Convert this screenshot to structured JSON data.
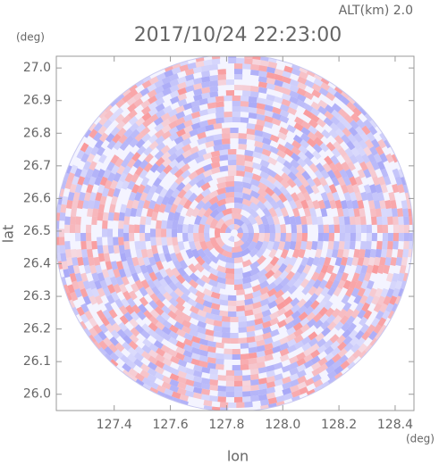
{
  "chart_data": {
    "type": "radar-ppi",
    "title": "2017/10/24 22:23:00",
    "subtitle": "ALT(km)  2.0",
    "x_label": "lon",
    "y_label": "lat",
    "x_unit": "(deg)",
    "y_unit": "(deg)",
    "xlim": [
      127.194,
      128.467
    ],
    "ylim": [
      25.95,
      27.036
    ],
    "xticks": [
      127.4,
      127.6,
      127.8,
      {
        "value": 128.0,
        "label": "128.0"
      },
      128.2,
      128.4
    ],
    "yticks": [
      {
        "value": 26.0,
        "label": "26.0"
      },
      26.1,
      26.2,
      26.3,
      26.4,
      26.5,
      26.6,
      26.7,
      26.8,
      26.9,
      {
        "value": 27.0,
        "label": "27.0"
      }
    ]
  }
}
